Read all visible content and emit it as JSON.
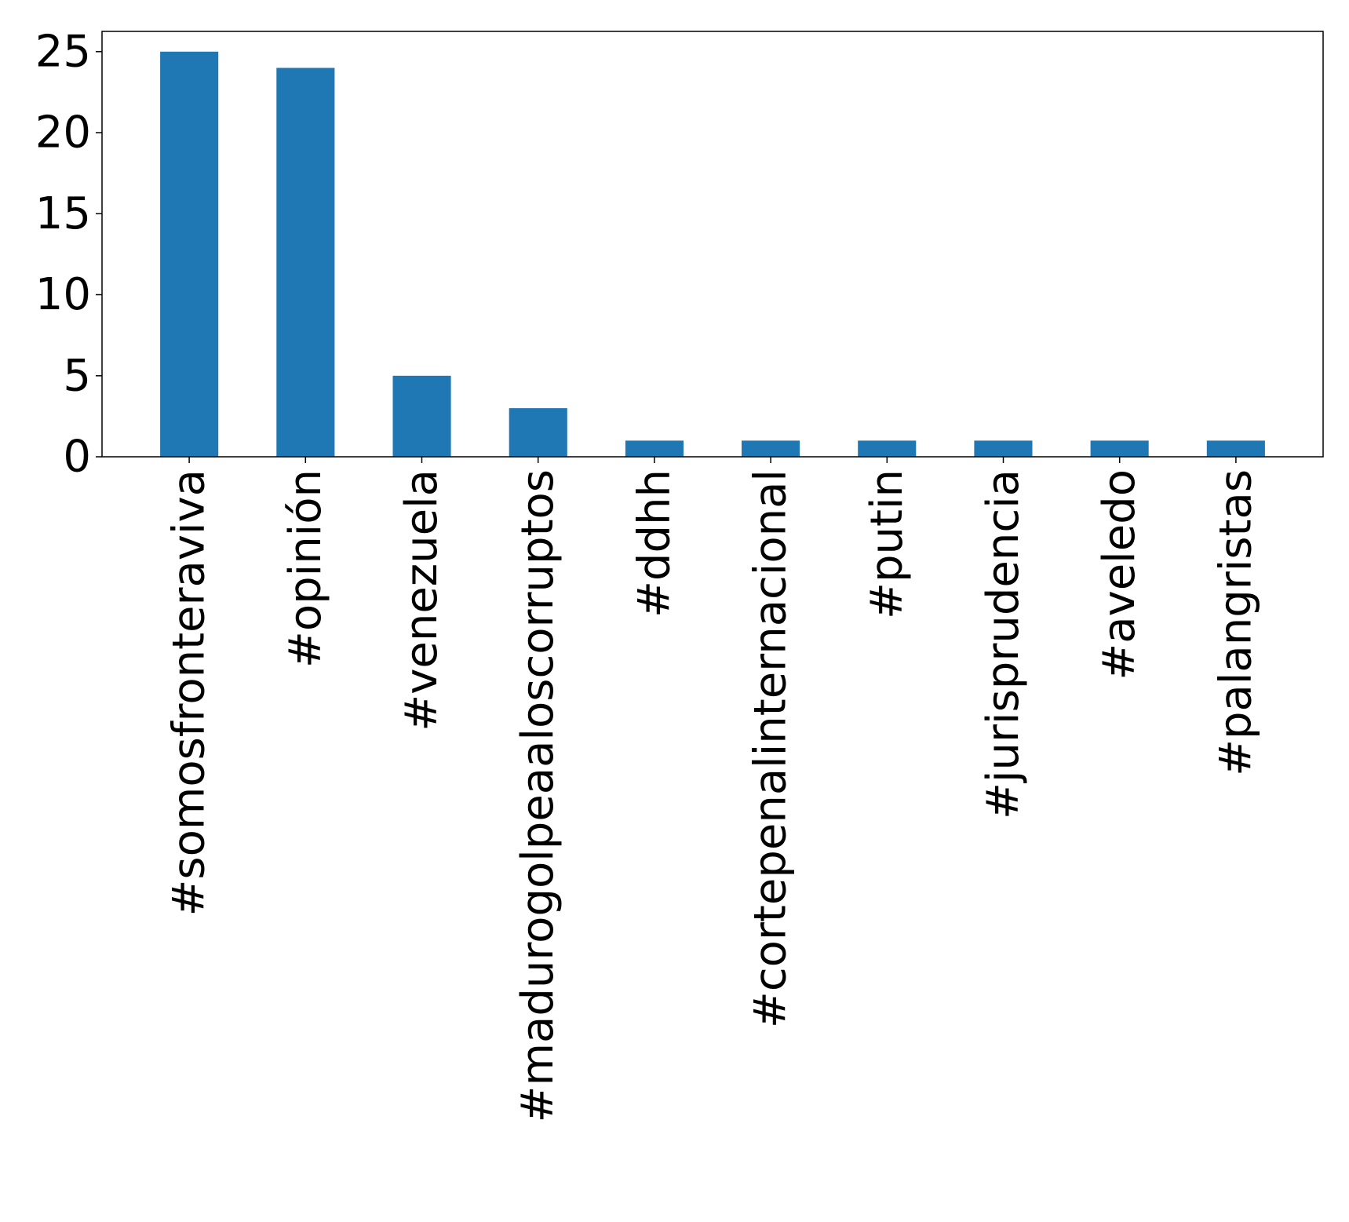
{
  "chart_data": {
    "type": "bar",
    "title": "",
    "xlabel": "",
    "ylabel": "",
    "categories": [
      "#somosfronteraviva",
      "#opinión",
      "#venezuela",
      "#madurogolpeaaloscorruptos",
      "#ddhh",
      "#cortepenalinternacional",
      "#putin",
      "#jurisprudencia",
      "#aveledo",
      "#palangristas"
    ],
    "values": [
      25,
      24,
      5,
      3,
      1,
      1,
      1,
      1,
      1,
      1
    ],
    "ylim": [
      0,
      26.25
    ],
    "yticks": [
      0,
      5,
      10,
      15,
      20,
      25
    ],
    "bar_color": "#1f77b4",
    "grid": false,
    "legend": "none"
  }
}
